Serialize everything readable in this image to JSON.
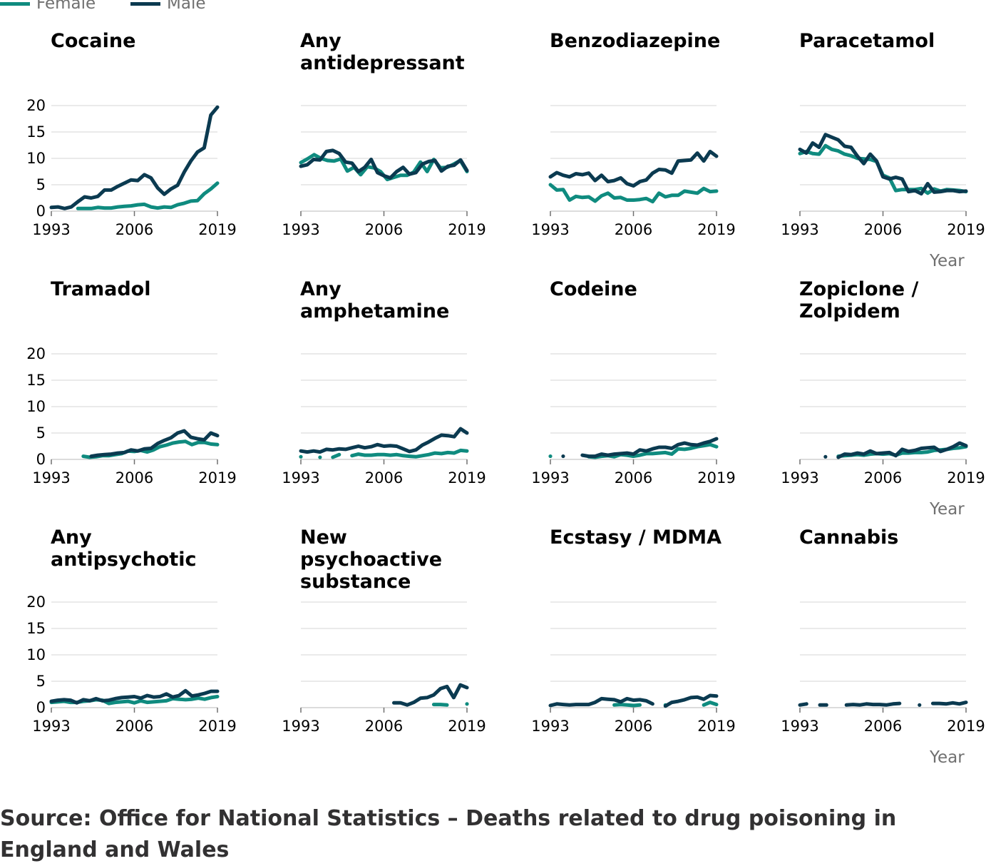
{
  "legend": {
    "items": [
      {
        "label": "Female",
        "color": "#0F8B7F"
      },
      {
        "label": "Male",
        "color": "#0B3A50"
      }
    ]
  },
  "axis": {
    "x_title": "Year"
  },
  "source": "Source: Office for National Statistics – Deaths related to drug poisoning in England and Wales",
  "chart_data": {
    "type": "line",
    "xlim": [
      1993,
      2019
    ],
    "ylim": [
      0,
      20
    ],
    "x_ticks": [
      "1993",
      "2006",
      "2019"
    ],
    "y_ticks": [
      "0",
      "5",
      "10",
      "15",
      "20"
    ],
    "grid": true,
    "legend_position": "top-left",
    "series_names": [
      "Female",
      "Male"
    ],
    "panels": [
      {
        "title": "Cocaine",
        "female": [
          null,
          null,
          null,
          null,
          0.5,
          0.5,
          0.5,
          0.7,
          0.6,
          0.6,
          0.8,
          0.9,
          1.0,
          1.2,
          1.3,
          0.8,
          0.6,
          0.8,
          0.7,
          1.2,
          1.5,
          1.9,
          2.0,
          3.3,
          4.2,
          5.3
        ],
        "male": [
          0.7,
          0.8,
          0.5,
          0.8,
          1.8,
          2.7,
          2.5,
          2.8,
          4.0,
          4.0,
          4.7,
          5.3,
          5.9,
          5.8,
          6.9,
          6.3,
          4.4,
          3.2,
          4.2,
          4.9,
          7.4,
          9.5,
          11.2,
          12.0,
          18.2,
          19.7
        ]
      },
      {
        "title": "Any antidepressant",
        "female": [
          9.2,
          9.9,
          10.7,
          10.0,
          9.6,
          9.5,
          9.9,
          7.6,
          8.3,
          6.9,
          8.4,
          8.2,
          7.5,
          6.0,
          6.4,
          6.8,
          6.8,
          7.4,
          9.3,
          7.5,
          9.8,
          8.2,
          8.3,
          8.9,
          9.6,
          7.5
        ],
        "male": [
          8.5,
          8.8,
          9.8,
          9.7,
          11.3,
          11.5,
          10.9,
          9.3,
          9.1,
          7.5,
          8.3,
          9.8,
          7.3,
          6.7,
          6.3,
          7.5,
          8.3,
          7.0,
          7.3,
          8.9,
          9.4,
          9.6,
          7.6,
          8.5,
          8.7,
          9.7,
          7.7
        ]
      },
      {
        "title": "Benzodiazepine",
        "female": [
          5.0,
          4.0,
          4.1,
          2.1,
          2.8,
          2.6,
          2.7,
          1.9,
          2.9,
          3.4,
          2.5,
          2.6,
          2.1,
          2.1,
          2.2,
          2.4,
          1.8,
          3.4,
          2.7,
          3.0,
          3.0,
          3.8,
          3.6,
          3.4,
          4.3,
          3.7,
          3.8
        ],
        "male": [
          6.5,
          7.3,
          6.8,
          6.5,
          7.1,
          6.9,
          7.2,
          5.8,
          6.8,
          5.6,
          5.8,
          6.3,
          5.2,
          4.8,
          5.6,
          5.9,
          7.2,
          7.9,
          7.8,
          7.2,
          9.5,
          9.6,
          9.7,
          11.0,
          9.5,
          11.3,
          10.4
        ]
      },
      {
        "title": "Paracetamol",
        "female": [
          10.9,
          11.3,
          10.9,
          10.8,
          12.4,
          11.7,
          11.4,
          10.8,
          10.5,
          10.0,
          9.9,
          9.8,
          9.4,
          6.8,
          6.3,
          3.9,
          4.1,
          4.1,
          4.1,
          4.3,
          3.4,
          4.2,
          3.8,
          4.1,
          4.0,
          3.9,
          3.7
        ],
        "male": [
          11.7,
          11.0,
          12.9,
          12.1,
          14.5,
          14.0,
          13.5,
          12.3,
          12.1,
          10.4,
          9.0,
          10.8,
          9.5,
          6.5,
          6.1,
          6.4,
          6.1,
          3.7,
          3.9,
          3.3,
          5.2,
          3.6,
          3.7,
          3.9,
          3.9,
          3.7,
          3.8
        ]
      },
      {
        "title": "Tramadol",
        "female": [
          null,
          null,
          null,
          null,
          null,
          0.6,
          0.4,
          0.5,
          0.7,
          0.7,
          0.9,
          1.1,
          1.6,
          1.5,
          1.7,
          1.4,
          1.8,
          2.4,
          2.7,
          3.1,
          3.3,
          3.4,
          2.8,
          3.2,
          3.2,
          2.9,
          2.8
        ],
        "male": [
          null,
          null,
          null,
          null,
          null,
          null,
          0.6,
          0.8,
          0.9,
          1.0,
          1.2,
          1.3,
          1.8,
          1.6,
          2.0,
          2.1,
          3.0,
          3.6,
          4.1,
          5.0,
          5.4,
          4.2,
          3.9,
          3.7,
          5.0,
          4.5
        ]
      },
      {
        "title": "Any amphetamine",
        "female": [
          0.5,
          null,
          null,
          0.4,
          null,
          0.4,
          0.9,
          null,
          0.7,
          1.0,
          0.8,
          0.8,
          0.9,
          0.9,
          0.8,
          0.9,
          0.7,
          0.6,
          0.5,
          0.7,
          0.9,
          1.2,
          1.1,
          1.3,
          1.2,
          1.7,
          1.6
        ],
        "male": [
          1.6,
          1.4,
          1.6,
          1.4,
          1.9,
          1.8,
          2.0,
          1.9,
          2.2,
          2.5,
          2.2,
          2.4,
          2.8,
          2.5,
          2.6,
          2.5,
          2.0,
          1.5,
          1.8,
          2.7,
          3.3,
          4.0,
          4.6,
          4.5,
          4.3,
          5.8,
          5.0
        ]
      },
      {
        "title": "Codeine",
        "female": [
          0.6,
          null,
          null,
          null,
          null,
          null,
          0.5,
          0.4,
          0.6,
          0.7,
          0.5,
          0.9,
          0.8,
          0.6,
          0.8,
          1.1,
          1.1,
          1.2,
          1.3,
          1.0,
          2.0,
          1.9,
          2.1,
          2.4,
          2.6,
          2.8,
          2.4
        ],
        "male": [
          null,
          null,
          0.6,
          null,
          null,
          0.8,
          0.6,
          0.6,
          1.0,
          0.8,
          1.0,
          1.1,
          1.2,
          1.0,
          1.8,
          1.6,
          2.0,
          2.3,
          2.3,
          2.1,
          2.8,
          3.1,
          2.8,
          2.7,
          3.1,
          3.4,
          3.9
        ]
      },
      {
        "title": "Zopiclone / Zolpidem",
        "female": [
          null,
          null,
          null,
          null,
          null,
          null,
          0.6,
          0.7,
          0.8,
          0.9,
          0.8,
          1.0,
          1.1,
          1.0,
          1.1,
          0.8,
          1.2,
          1.2,
          1.3,
          1.3,
          1.4,
          1.7,
          1.8,
          1.9,
          2.1,
          2.2,
          2.4
        ],
        "male": [
          null,
          null,
          null,
          null,
          0.5,
          null,
          0.4,
          1.0,
          0.9,
          1.2,
          1.0,
          1.6,
          1.1,
          1.2,
          1.3,
          0.7,
          1.9,
          1.5,
          1.7,
          2.1,
          2.2,
          2.3,
          1.5,
          1.9,
          2.4,
          3.1,
          2.6
        ]
      },
      {
        "title": "Any antipsychotic",
        "female": [
          1.0,
          1.1,
          1.2,
          1.0,
          1.0,
          1.2,
          1.3,
          1.5,
          1.4,
          0.8,
          1.0,
          1.1,
          1.2,
          0.9,
          1.3,
          1.0,
          1.1,
          1.2,
          1.3,
          1.7,
          1.6,
          1.5,
          1.6,
          1.8,
          1.6,
          1.9,
          2.1
        ],
        "male": [
          1.2,
          1.4,
          1.5,
          1.4,
          0.9,
          1.5,
          1.3,
          1.7,
          1.3,
          1.4,
          1.7,
          1.9,
          2.0,
          2.1,
          1.8,
          2.3,
          2.0,
          2.1,
          2.6,
          2.0,
          2.3,
          3.2,
          2.2,
          2.4,
          2.7,
          3.1,
          3.1
        ]
      },
      {
        "title": "New psychoactive substance",
        "female": [
          null,
          null,
          null,
          null,
          null,
          null,
          null,
          null,
          null,
          null,
          null,
          null,
          null,
          null,
          null,
          null,
          null,
          null,
          null,
          null,
          0.6,
          0.6,
          0.5,
          null,
          null,
          0.7
        ],
        "male": [
          null,
          null,
          null,
          null,
          null,
          null,
          null,
          null,
          null,
          null,
          null,
          null,
          null,
          null,
          0.9,
          0.9,
          0.5,
          1.0,
          1.8,
          1.9,
          2.4,
          3.6,
          4.0,
          1.9,
          4.3,
          3.8
        ]
      },
      {
        "title": "Ecstasy / MDMA",
        "female": [
          null,
          null,
          null,
          null,
          null,
          null,
          null,
          null,
          null,
          null,
          0.5,
          0.6,
          0.5,
          0.4,
          0.5,
          null,
          null,
          null,
          0.5,
          null,
          null,
          null,
          null,
          null,
          0.5,
          1.0,
          0.6
        ],
        "male": [
          0.4,
          0.7,
          0.6,
          0.5,
          0.6,
          0.6,
          0.6,
          1.0,
          1.7,
          1.6,
          1.5,
          1.1,
          1.7,
          1.4,
          1.5,
          1.3,
          0.7,
          null,
          0.3,
          1.0,
          1.2,
          1.5,
          1.9,
          2.0,
          1.6,
          2.3,
          2.2
        ]
      },
      {
        "title": "Cannabis",
        "female": [
          null,
          null,
          null,
          null,
          null,
          null,
          null,
          null,
          null,
          null,
          null,
          null,
          null,
          null,
          null,
          null,
          null,
          null,
          null,
          null,
          null,
          null,
          null,
          null,
          null,
          null,
          null
        ],
        "male": [
          0.5,
          0.7,
          null,
          0.5,
          0.5,
          null,
          null,
          0.5,
          0.6,
          0.5,
          0.7,
          0.6,
          0.6,
          0.5,
          0.7,
          0.8,
          null,
          null,
          0.5,
          null,
          0.8,
          0.8,
          0.7,
          0.9,
          0.7,
          1.0
        ]
      }
    ]
  }
}
